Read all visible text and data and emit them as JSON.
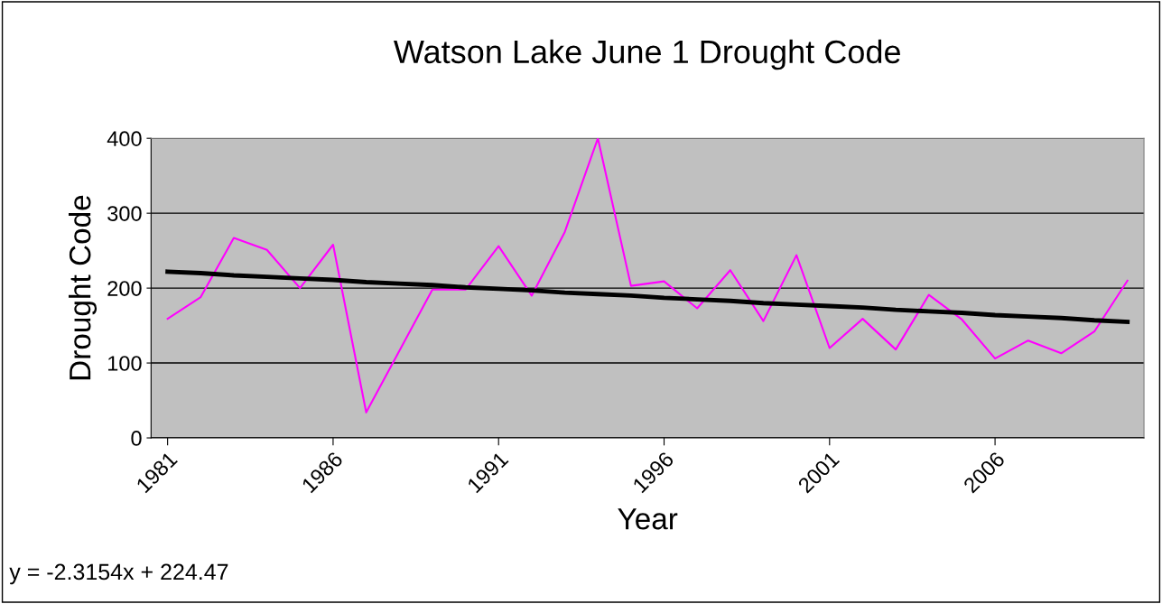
{
  "chart_data": {
    "type": "line",
    "title": "Watson Lake June 1 Drought Code",
    "xlabel": "Year",
    "ylabel": "Drought Code",
    "categories": [
      "1981",
      null,
      null,
      null,
      null,
      "1986",
      null,
      null,
      null,
      null,
      "1991",
      null,
      null,
      null,
      null,
      "1996",
      null,
      null,
      null,
      null,
      "2001",
      null,
      null,
      null,
      null,
      "2006",
      null,
      null,
      null,
      null
    ],
    "series": [
      {
        "color": "#ff00ff",
        "values": [
          159,
          188,
          267,
          251,
          200,
          258,
          34,
          116,
          198,
          198,
          256,
          190,
          275,
          400,
          203,
          209,
          173,
          224,
          156,
          244,
          120,
          159,
          118,
          191,
          158,
          106,
          130,
          113,
          142,
          210
        ]
      },
      {
        "color": "#000000",
        "values": [
          222,
          220,
          217,
          215,
          213,
          211,
          208,
          206,
          204,
          201,
          199,
          197,
          194,
          192,
          190,
          187,
          185,
          183,
          180,
          178,
          176,
          174,
          171,
          169,
          167,
          164,
          162,
          160,
          157,
          155
        ]
      }
    ],
    "ylim": [
      0,
      400
    ],
    "yticks": [
      0,
      100,
      200,
      300,
      400
    ],
    "grid": "y",
    "marker": "none",
    "line_style": "solid",
    "annotations": [
      "y = -2.3154x + 224.47"
    ]
  }
}
